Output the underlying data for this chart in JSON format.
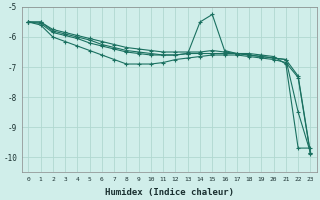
{
  "xlabel": "Humidex (Indice chaleur)",
  "bg_color": "#d0eeea",
  "grid_color": "#b0d8d0",
  "line_color": "#1a7060",
  "xlim": [
    -0.5,
    23.5
  ],
  "ylim": [
    -10.5,
    -5.0
  ],
  "yticks": [
    -10,
    -9,
    -8,
    -7,
    -6,
    -5
  ],
  "xticks": [
    0,
    1,
    2,
    3,
    4,
    5,
    6,
    7,
    8,
    9,
    10,
    11,
    12,
    13,
    14,
    15,
    16,
    17,
    18,
    19,
    20,
    21,
    22,
    23
  ],
  "series": [
    {
      "x": [
        0,
        1,
        2,
        3,
        4,
        5,
        6,
        7,
        8,
        9,
        10,
        11,
        12,
        13,
        14,
        15,
        16,
        17,
        18,
        19,
        20,
        21,
        22,
        23
      ],
      "y": [
        -5.5,
        -5.5,
        -5.75,
        -5.85,
        -5.95,
        -6.05,
        -6.15,
        -6.25,
        -6.35,
        -6.4,
        -6.45,
        -6.5,
        -6.5,
        -6.5,
        -6.5,
        -6.45,
        -6.5,
        -6.55,
        -6.55,
        -6.6,
        -6.65,
        -6.9,
        -9.7,
        -9.7
      ]
    },
    {
      "x": [
        0,
        1,
        2,
        3,
        4,
        5,
        6,
        7,
        8,
        9,
        10,
        11,
        12,
        13,
        14,
        15,
        16,
        17,
        18,
        19,
        20,
        21,
        22,
        23
      ],
      "y": [
        -5.5,
        -5.5,
        -5.8,
        -5.9,
        -6.0,
        -6.1,
        -6.25,
        -6.35,
        -6.45,
        -6.5,
        -6.55,
        -6.6,
        -6.6,
        -6.55,
        -5.5,
        -5.25,
        -6.45,
        -6.55,
        -6.6,
        -6.65,
        -6.7,
        -6.75,
        -8.5,
        -9.85
      ]
    },
    {
      "x": [
        0,
        1,
        2,
        3,
        4,
        5,
        6,
        7,
        8,
        9,
        10,
        11,
        12,
        13,
        14,
        15,
        16,
        17,
        18,
        19,
        20,
        21,
        22,
        23
      ],
      "y": [
        -5.5,
        -5.55,
        -5.85,
        -5.95,
        -6.05,
        -6.2,
        -6.3,
        -6.4,
        -6.5,
        -6.55,
        -6.6,
        -6.6,
        -6.6,
        -6.55,
        -6.55,
        -6.55,
        -6.55,
        -6.55,
        -6.6,
        -6.65,
        -6.7,
        -6.75,
        -7.3,
        -9.85
      ]
    },
    {
      "x": [
        0,
        1,
        2,
        3,
        4,
        5,
        6,
        7,
        8,
        9,
        10,
        11,
        12,
        13,
        14,
        15,
        16,
        17,
        18,
        19,
        20,
        21,
        22,
        23
      ],
      "y": [
        -5.5,
        -5.6,
        -6.0,
        -6.15,
        -6.3,
        -6.45,
        -6.6,
        -6.75,
        -6.9,
        -6.9,
        -6.9,
        -6.85,
        -6.75,
        -6.7,
        -6.65,
        -6.6,
        -6.6,
        -6.6,
        -6.65,
        -6.7,
        -6.75,
        -6.85,
        -7.35,
        -9.9
      ]
    }
  ]
}
